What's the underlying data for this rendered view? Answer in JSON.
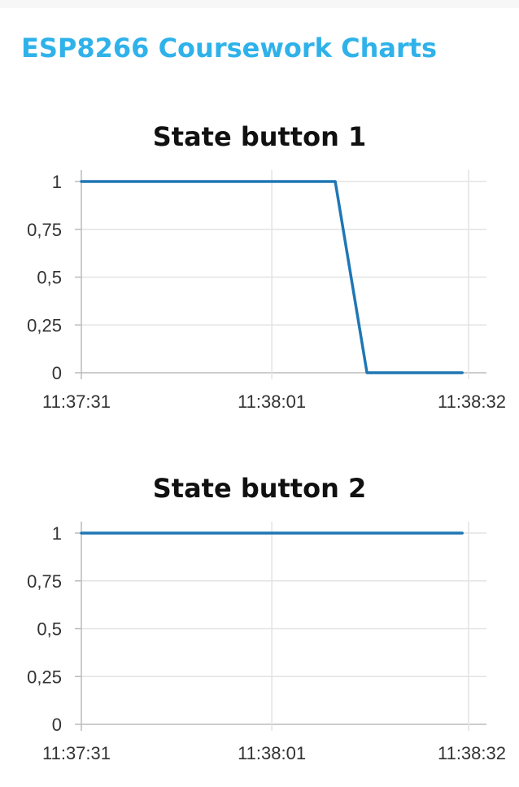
{
  "page": {
    "title": "ESP8266 Coursework Charts"
  },
  "colors": {
    "title": "#2fb2ea",
    "series": "#1f77b4",
    "grid": "#e3e3e3"
  },
  "chart_data": [
    {
      "type": "line",
      "title": "State button 1",
      "xlabel": "",
      "ylabel": "",
      "x_ticks": [
        "11:37:31",
        "11:38:01",
        "11:38:32"
      ],
      "y_ticks": [
        "0",
        "0,25",
        "0,5",
        "0,75",
        "1"
      ],
      "ylim": [
        0,
        1
      ],
      "grid": true,
      "series": [
        {
          "x": [
            "11:37:31",
            "11:38:11",
            "11:38:16",
            "11:38:31"
          ],
          "values": [
            1,
            1,
            0,
            0
          ]
        }
      ]
    },
    {
      "type": "line",
      "title": "State button 2",
      "xlabel": "",
      "ylabel": "",
      "x_ticks": [
        "11:37:31",
        "11:38:01",
        "11:38:32"
      ],
      "y_ticks": [
        "0",
        "0,25",
        "0,5",
        "0,75",
        "1"
      ],
      "ylim": [
        0,
        1
      ],
      "grid": true,
      "series": [
        {
          "x": [
            "11:37:31",
            "11:38:31"
          ],
          "values": [
            1,
            1
          ]
        }
      ]
    }
  ]
}
